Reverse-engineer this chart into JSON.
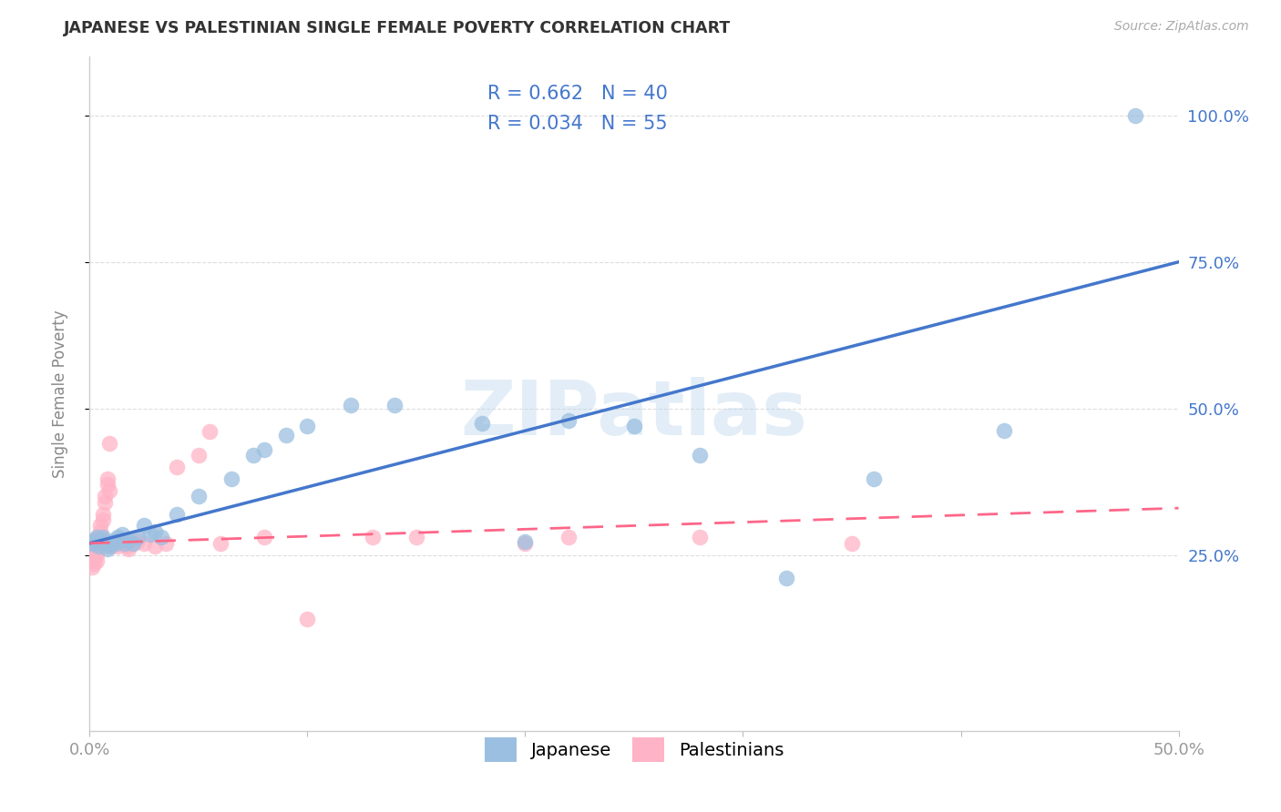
{
  "title": "JAPANESE VS PALESTINIAN SINGLE FEMALE POVERTY CORRELATION CHART",
  "source": "Source: ZipAtlas.com",
  "ylabel": "Single Female Poverty",
  "watermark": "ZIPatlas",
  "xlim": [
    0.0,
    0.5
  ],
  "ylim": [
    -0.05,
    1.1
  ],
  "xtick_positions": [
    0.0,
    0.1,
    0.2,
    0.3,
    0.4,
    0.5
  ],
  "xtick_labels": [
    "0.0%",
    "",
    "",
    "",
    "",
    "50.0%"
  ],
  "ytick_vals_right": [
    0.25,
    0.5,
    0.75,
    1.0
  ],
  "ytick_labels_right": [
    "25.0%",
    "50.0%",
    "75.0%",
    "100.0%"
  ],
  "japanese_R": 0.662,
  "japanese_N": 40,
  "palestinian_R": 0.034,
  "palestinian_N": 55,
  "japanese_color": "#9BBFE0",
  "palestinian_color": "#FFB3C6",
  "japanese_line_color": "#4477CC",
  "palestinian_line_color": "#FF6688",
  "legend_text_color": "#4477CC",
  "grid_color": "#DDDDDD",
  "background_color": "#FFFFFF",
  "japanese_x": [
    0.001,
    0.002,
    0.003,
    0.004,
    0.005,
    0.006,
    0.007,
    0.008,
    0.009,
    0.01,
    0.011,
    0.012,
    0.013,
    0.015,
    0.016,
    0.018,
    0.02,
    0.022,
    0.025,
    0.028,
    0.03,
    0.033,
    0.04,
    0.05,
    0.065,
    0.075,
    0.08,
    0.09,
    0.1,
    0.12,
    0.14,
    0.18,
    0.2,
    0.22,
    0.25,
    0.28,
    0.32,
    0.36,
    0.42,
    0.48
  ],
  "japanese_y": [
    0.27,
    0.275,
    0.28,
    0.265,
    0.27,
    0.28,
    0.275,
    0.26,
    0.265,
    0.27,
    0.275,
    0.27,
    0.28,
    0.285,
    0.27,
    0.275,
    0.27,
    0.28,
    0.3,
    0.285,
    0.29,
    0.28,
    0.32,
    0.35,
    0.38,
    0.42,
    0.43,
    0.455,
    0.47,
    0.505,
    0.505,
    0.475,
    0.272,
    0.48,
    0.47,
    0.42,
    0.21,
    0.38,
    0.462,
    1.0
  ],
  "palestinian_x": [
    0.001,
    0.001,
    0.001,
    0.001,
    0.001,
    0.002,
    0.002,
    0.002,
    0.002,
    0.002,
    0.003,
    0.003,
    0.003,
    0.003,
    0.004,
    0.004,
    0.004,
    0.005,
    0.005,
    0.005,
    0.006,
    0.006,
    0.007,
    0.007,
    0.008,
    0.008,
    0.009,
    0.009,
    0.01,
    0.01,
    0.011,
    0.012,
    0.013,
    0.014,
    0.015,
    0.016,
    0.017,
    0.018,
    0.02,
    0.022,
    0.025,
    0.03,
    0.035,
    0.04,
    0.05,
    0.055,
    0.06,
    0.08,
    0.1,
    0.13,
    0.15,
    0.2,
    0.22,
    0.28,
    0.35
  ],
  "palestinian_y": [
    0.27,
    0.26,
    0.25,
    0.24,
    0.23,
    0.275,
    0.265,
    0.255,
    0.245,
    0.235,
    0.27,
    0.26,
    0.25,
    0.24,
    0.28,
    0.27,
    0.26,
    0.3,
    0.29,
    0.28,
    0.32,
    0.31,
    0.35,
    0.34,
    0.38,
    0.37,
    0.36,
    0.44,
    0.27,
    0.265,
    0.27,
    0.275,
    0.265,
    0.27,
    0.275,
    0.27,
    0.265,
    0.26,
    0.27,
    0.275,
    0.27,
    0.265,
    0.27,
    0.4,
    0.42,
    0.46,
    0.27,
    0.28,
    0.14,
    0.28,
    0.28,
    0.27,
    0.28,
    0.28,
    0.27
  ]
}
